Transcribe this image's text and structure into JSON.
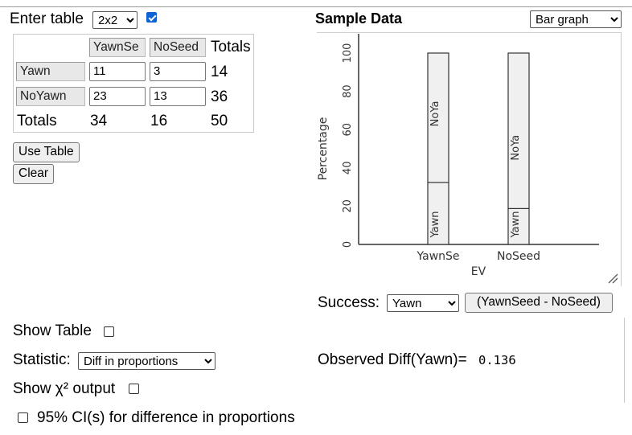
{
  "table_input": {
    "label": "Enter table",
    "size_selected": "2x2",
    "show_checkbox_checked": true,
    "col_headers": [
      "YawnSe",
      "NoSeed"
    ],
    "totals_label": "Totals",
    "rows": [
      {
        "name": "Yawn",
        "values": [
          "11",
          "3"
        ],
        "total": "14"
      },
      {
        "name": "NoYawn",
        "values": [
          "23",
          "13"
        ],
        "total": "36"
      }
    ],
    "col_totals": [
      "34",
      "16"
    ],
    "grand_total": "50",
    "use_table_button": "Use Table",
    "clear_button": "Clear"
  },
  "sample_data": {
    "title": "Sample Data",
    "graph_type_selected": "Bar graph"
  },
  "chart_data": {
    "type": "bar",
    "stacked": true,
    "categories": [
      "YawnSe",
      "NoSeed"
    ],
    "series": [
      {
        "name": "Yawn",
        "values": [
          32.4,
          18.75
        ]
      },
      {
        "name": "NoYa",
        "values": [
          67.6,
          81.25
        ]
      }
    ],
    "segment_labels": [
      "Yawn",
      "NoYa"
    ],
    "xlabel": "EV",
    "ylabel": "Percentage",
    "ylim": [
      0,
      100
    ],
    "yticks": [
      "0",
      "20",
      "40",
      "60",
      "80",
      "100"
    ],
    "colors": {
      "bar_fill": "#f0f0f0",
      "bar_stroke": "#333333",
      "axis": "#333333"
    }
  },
  "success": {
    "label": "Success:",
    "selected": "Yawn",
    "diff_button": "(YawnSeed - NoSeed)"
  },
  "options": {
    "show_table_label": "Show Table",
    "statistic_label": "Statistic:",
    "statistic_selected": "Diff in proportions",
    "chi_label": "Show χ² output",
    "ci_label": "95% CI(s) for difference in proportions"
  },
  "observed": {
    "label": "Observed Diff(Yawn)=",
    "value": "0.136"
  }
}
